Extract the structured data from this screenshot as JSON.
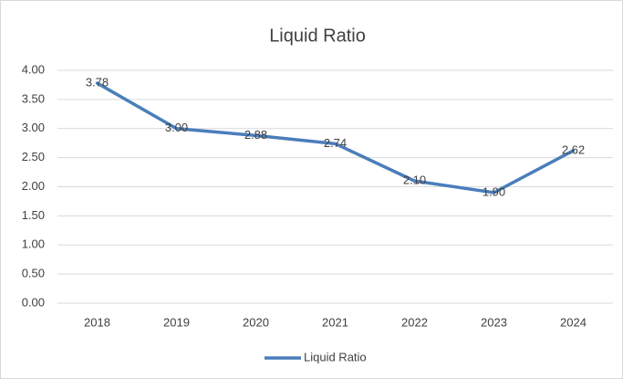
{
  "chart_data": {
    "type": "line",
    "title": "Liquid Ratio",
    "categories": [
      "2018",
      "2019",
      "2020",
      "2021",
      "2022",
      "2023",
      "2024"
    ],
    "series": [
      {
        "name": "Liquid Ratio",
        "color": "#4a7ebb",
        "values": [
          3.78,
          3.0,
          2.88,
          2.74,
          2.1,
          1.9,
          2.62
        ],
        "value_labels": [
          "3.78",
          "3.00",
          "2.88",
          "2.74",
          "2.10",
          "1.90",
          "2.62"
        ]
      }
    ],
    "ylim": [
      0,
      4
    ],
    "yticks": [
      {
        "value": 0,
        "label": "0.00"
      },
      {
        "value": 0.5,
        "label": "0.50"
      },
      {
        "value": 1,
        "label": "1.00"
      },
      {
        "value": 1.5,
        "label": "1.50"
      },
      {
        "value": 2,
        "label": "2.00"
      },
      {
        "value": 2.5,
        "label": "2.50"
      },
      {
        "value": 3,
        "label": "3.00"
      },
      {
        "value": 3.5,
        "label": "3.50"
      },
      {
        "value": 4,
        "label": "4.00"
      }
    ],
    "grid": true,
    "legend": "bottom"
  }
}
